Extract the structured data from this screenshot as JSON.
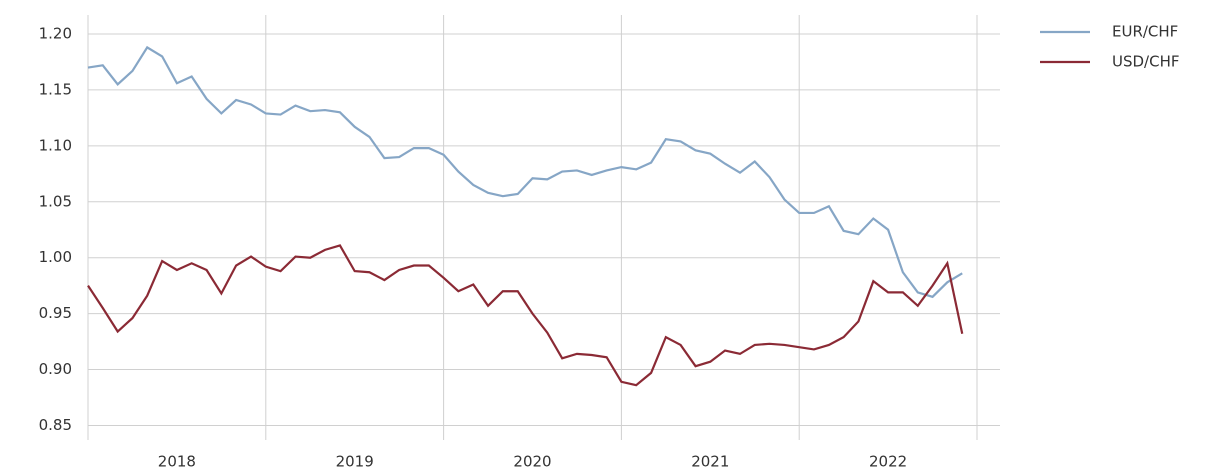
{
  "chart_data": {
    "type": "line",
    "x": [
      2018,
      2018.083,
      2018.167,
      2018.25,
      2018.333,
      2018.417,
      2018.5,
      2018.583,
      2018.667,
      2018.75,
      2018.833,
      2018.917,
      2019,
      2019.083,
      2019.167,
      2019.25,
      2019.333,
      2019.417,
      2019.5,
      2019.583,
      2019.667,
      2019.75,
      2019.833,
      2019.917,
      2020,
      2020.083,
      2020.167,
      2020.25,
      2020.333,
      2020.417,
      2020.5,
      2020.583,
      2020.667,
      2020.75,
      2020.833,
      2020.917,
      2021,
      2021.083,
      2021.167,
      2021.25,
      2021.333,
      2021.417,
      2021.5,
      2021.583,
      2021.667,
      2021.75,
      2021.833,
      2021.917,
      2022,
      2022.083,
      2022.167,
      2022.25,
      2022.333,
      2022.417,
      2022.5,
      2022.583,
      2022.667,
      2022.75,
      2022.833,
      2022.917
    ],
    "series": [
      {
        "name": "EUR/CHF",
        "color": "#86a6c6",
        "values": [
          1.17,
          1.172,
          1.155,
          1.167,
          1.188,
          1.18,
          1.156,
          1.162,
          1.142,
          1.129,
          1.141,
          1.137,
          1.129,
          1.128,
          1.136,
          1.131,
          1.132,
          1.13,
          1.117,
          1.108,
          1.089,
          1.09,
          1.098,
          1.098,
          1.092,
          1.077,
          1.065,
          1.058,
          1.055,
          1.057,
          1.071,
          1.07,
          1.077,
          1.078,
          1.074,
          1.078,
          1.081,
          1.079,
          1.085,
          1.106,
          1.104,
          1.096,
          1.093,
          1.084,
          1.076,
          1.086,
          1.072,
          1.052,
          1.04,
          1.04,
          1.046,
          1.024,
          1.021,
          1.035,
          1.025,
          0.987,
          0.969,
          0.965,
          0.978,
          0.986
        ]
      },
      {
        "name": "USD/CHF",
        "color": "#8b2a35",
        "values": [
          0.975,
          0.955,
          0.934,
          0.946,
          0.966,
          0.997,
          0.989,
          0.995,
          0.989,
          0.968,
          0.993,
          1.001,
          0.992,
          0.988,
          1.001,
          1.0,
          1.007,
          1.011,
          0.988,
          0.987,
          0.98,
          0.989,
          0.993,
          0.993,
          0.982,
          0.97,
          0.976,
          0.957,
          0.97,
          0.97,
          0.95,
          0.933,
          0.91,
          0.914,
          0.913,
          0.911,
          0.889,
          0.886,
          0.897,
          0.929,
          0.922,
          0.903,
          0.907,
          0.917,
          0.914,
          0.922,
          0.923,
          0.922,
          0.92,
          0.918,
          0.922,
          0.929,
          0.943,
          0.979,
          0.969,
          0.969,
          0.957,
          0.975,
          0.995,
          0.932
        ]
      }
    ],
    "xlim": [
      2018,
      2023
    ],
    "xticks": [
      {
        "value": 2018.5,
        "label": "2018"
      },
      {
        "value": 2019.5,
        "label": "2019"
      },
      {
        "value": 2020.5,
        "label": "2020"
      },
      {
        "value": 2021.5,
        "label": "2021"
      },
      {
        "value": 2022.5,
        "label": "2022"
      }
    ],
    "xgrid": [
      2018,
      2019,
      2020,
      2021,
      2022,
      2023
    ],
    "ylim": [
      0.837,
      1.217
    ],
    "yticks": [
      {
        "value": 0.85,
        "label": "0.85"
      },
      {
        "value": 0.9,
        "label": "0.90"
      },
      {
        "value": 0.95,
        "label": "0.95"
      },
      {
        "value": 1.0,
        "label": "1.00"
      },
      {
        "value": 1.05,
        "label": "1.05"
      },
      {
        "value": 1.1,
        "label": "1.10"
      },
      {
        "value": 1.15,
        "label": "1.15"
      },
      {
        "value": 1.2,
        "label": "1.20"
      }
    ],
    "grid": true,
    "legend": "top-right"
  }
}
